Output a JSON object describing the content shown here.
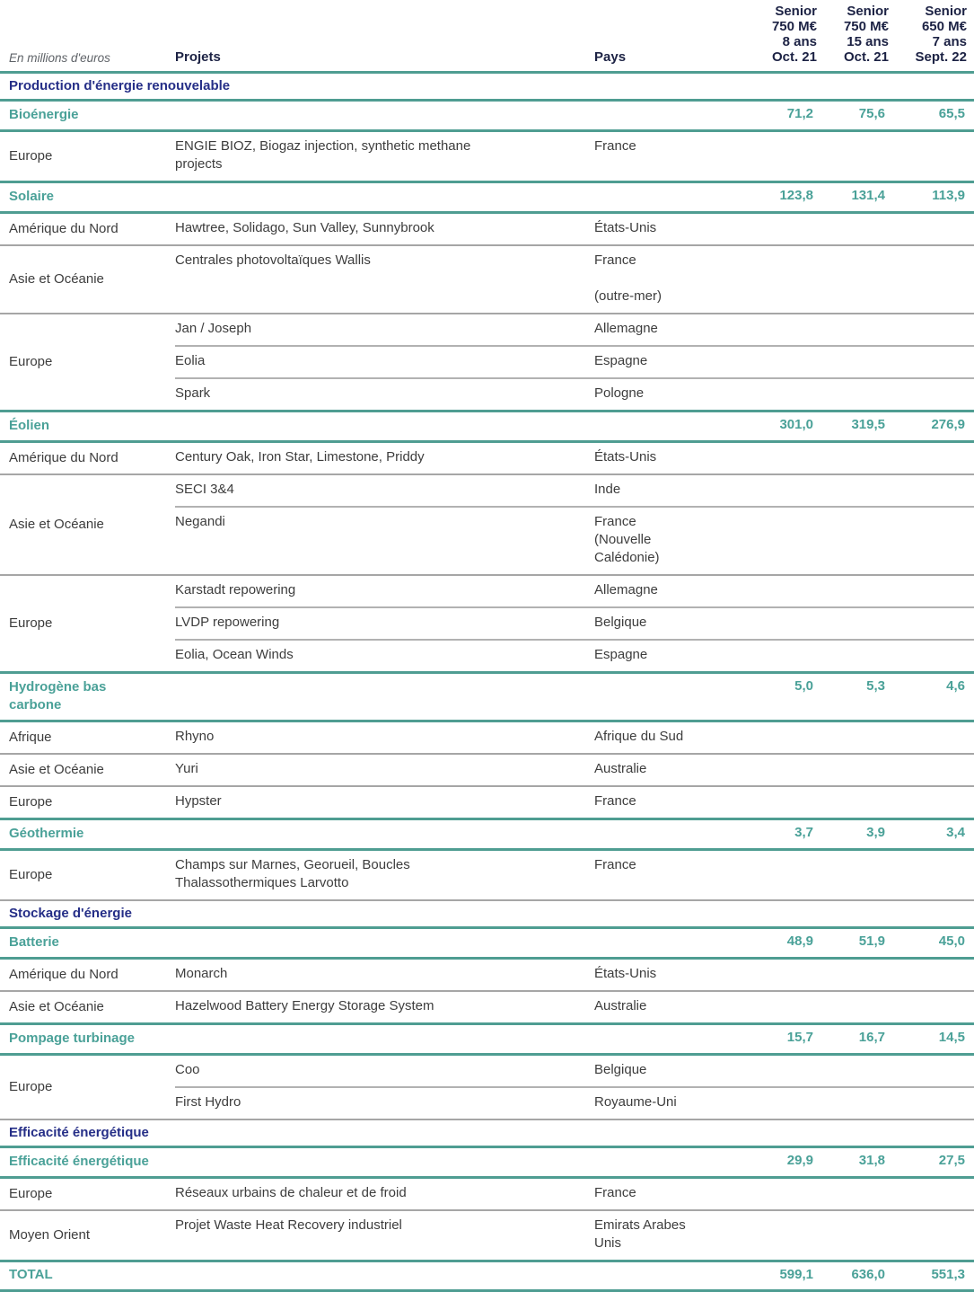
{
  "columns": {
    "unit": "En millions d'euros",
    "projets": "Projets",
    "pays": "Pays",
    "bonds": [
      {
        "name": "Senior",
        "amount": "750 M€",
        "tenor": "8 ans",
        "date": "Oct. 21"
      },
      {
        "name": "Senior",
        "amount": "750 M€",
        "tenor": "15 ans",
        "date": "Oct. 21"
      },
      {
        "name": "Senior",
        "amount": "650 M€",
        "tenor": "7 ans",
        "date": "Sept. 22"
      }
    ]
  },
  "sections": [
    {
      "title": "Production d'énergie renouvelable",
      "categories": [
        {
          "name": "Bioénergie",
          "values": [
            "71,2",
            "75,6",
            "65,5"
          ],
          "groups": [
            {
              "region": "Europe",
              "rows": [
                {
                  "projet": "ENGIE BIOZ, Biogaz injection, synthetic methane\nprojects",
                  "pays": "France"
                }
              ]
            }
          ]
        },
        {
          "name": "Solaire",
          "values": [
            "123,8",
            "131,4",
            "113,9"
          ],
          "groups": [
            {
              "region": "Amérique du Nord",
              "rows": [
                {
                  "projet": "Hawtree, Solidago, Sun Valley, Sunnybrook",
                  "pays": "États-Unis"
                }
              ]
            },
            {
              "region": "Asie et Océanie",
              "rows": [
                {
                  "projet": "Centrales photovoltaïques Wallis",
                  "pays": "France\n\n(outre-mer)"
                }
              ]
            },
            {
              "region": "Europe",
              "rows": [
                {
                  "projet": "Jan / Joseph",
                  "pays": "Allemagne"
                },
                {
                  "projet": "Eolia",
                  "pays": "Espagne"
                },
                {
                  "projet": "Spark",
                  "pays": "Pologne"
                }
              ]
            }
          ]
        },
        {
          "name": "Éolien",
          "values": [
            "301,0",
            "319,5",
            "276,9"
          ],
          "groups": [
            {
              "region": "Amérique du Nord",
              "rows": [
                {
                  "projet": "Century Oak, Iron Star, Limestone, Priddy",
                  "pays": "États-Unis"
                }
              ]
            },
            {
              "region": "Asie et Océanie",
              "rows": [
                {
                  "projet": "SECI 3&4",
                  "pays": "Inde"
                },
                {
                  "projet": "Negandi",
                  "pays": "France\n(Nouvelle\nCalédonie)"
                }
              ]
            },
            {
              "region": "Europe",
              "rows": [
                {
                  "projet": "Karstadt repowering",
                  "pays": "Allemagne"
                },
                {
                  "projet": "LVDP repowering",
                  "pays": "Belgique"
                },
                {
                  "projet": "Eolia, Ocean Winds",
                  "pays": "Espagne"
                }
              ]
            }
          ]
        },
        {
          "name": "Hydrogène bas\ncarbone",
          "values": [
            "5,0",
            "5,3",
            "4,6"
          ],
          "groups": [
            {
              "region": "Afrique",
              "rows": [
                {
                  "projet": "Rhyno",
                  "pays": "Afrique du Sud"
                }
              ]
            },
            {
              "region": "Asie et Océanie",
              "rows": [
                {
                  "projet": "Yuri",
                  "pays": "Australie"
                }
              ]
            },
            {
              "region": "Europe",
              "rows": [
                {
                  "projet": "Hypster",
                  "pays": "France"
                }
              ]
            }
          ]
        },
        {
          "name": "Géothermie",
          "values": [
            "3,7",
            "3,9",
            "3,4"
          ],
          "groups": [
            {
              "region": "Europe",
              "rows": [
                {
                  "projet": "Champs sur Marnes, Georueil, Boucles\nThalassothermiques Larvotto",
                  "pays": "France"
                }
              ]
            }
          ]
        }
      ]
    },
    {
      "title": "Stockage d'énergie",
      "categories": [
        {
          "name": "Batterie",
          "values": [
            "48,9",
            "51,9",
            "45,0"
          ],
          "groups": [
            {
              "region": "Amérique du Nord",
              "rows": [
                {
                  "projet": "Monarch",
                  "pays": "États-Unis"
                }
              ]
            },
            {
              "region": "Asie et Océanie",
              "rows": [
                {
                  "projet": "Hazelwood Battery Energy Storage System",
                  "pays": "Australie"
                }
              ]
            }
          ]
        },
        {
          "name": "Pompage turbinage",
          "values": [
            "15,7",
            "16,7",
            "14,5"
          ],
          "groups": [
            {
              "region": "Europe",
              "rows": [
                {
                  "projet": "Coo",
                  "pays": "Belgique"
                },
                {
                  "projet": "First Hydro",
                  "pays": "Royaume-Uni"
                }
              ]
            }
          ]
        }
      ]
    },
    {
      "title": "Efficacité énergétique",
      "categories": [
        {
          "name": "Efficacité énergétique",
          "values": [
            "29,9",
            "31,8",
            "27,5"
          ],
          "groups": [
            {
              "region": "Europe",
              "rows": [
                {
                  "projet": "Réseaux urbains de chaleur et de froid",
                  "pays": "France"
                }
              ]
            },
            {
              "region": "Moyen Orient",
              "rows": [
                {
                  "projet": "Projet Waste Heat Recovery industriel",
                  "pays": "Emirats Arabes\nUnis"
                }
              ]
            }
          ]
        }
      ]
    }
  ],
  "total": {
    "label": "TOTAL",
    "values": [
      "599,1",
      "636,0",
      "551,3"
    ]
  },
  "colors": {
    "teal_line": "#4f9d92",
    "teal_text": "#4aa198",
    "navy_section_text": "#252e87",
    "header_text": "#1c2244",
    "body_text": "#3d3d3d",
    "grid_gray": "#a6a6a6"
  }
}
